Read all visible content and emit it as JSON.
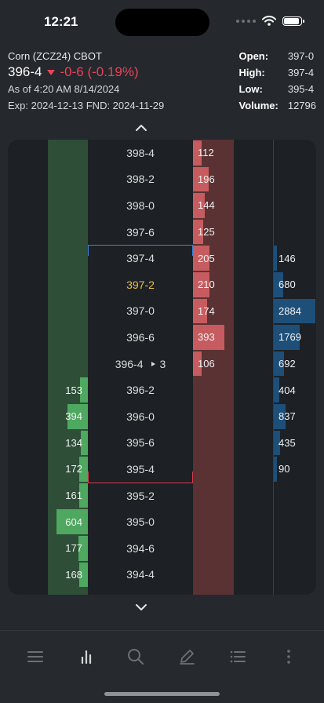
{
  "status_bar": {
    "time": "12:21"
  },
  "header": {
    "instrument": "Corn (ZCZ24) CBOT",
    "last_price": "396-4",
    "change": "-0-6 (-0.19%)",
    "as_of": "As of 4:20 AM 8/14/2024",
    "expiry": "Exp: 2024-12-13 FND: 2024-11-29",
    "stats": [
      {
        "label": "Open:",
        "value": "397-0"
      },
      {
        "label": "High:",
        "value": "397-4"
      },
      {
        "label": "Low:",
        "value": "395-4"
      },
      {
        "label": "Volume:",
        "value": "12796"
      }
    ]
  },
  "ladder": {
    "colors": {
      "bid": "#4ea85f",
      "ask": "#c65c5f",
      "volume": "#1e4f79",
      "highlight_price": "#e8c046",
      "high_marker": "#3b82d6",
      "low_marker": "#d43c4a"
    },
    "last_trade_qty": "3",
    "rows": [
      {
        "price": "398-4",
        "bid": "",
        "ask": "112",
        "volume": ""
      },
      {
        "price": "398-2",
        "bid": "",
        "ask": "196",
        "volume": ""
      },
      {
        "price": "398-0",
        "bid": "",
        "ask": "144",
        "volume": ""
      },
      {
        "price": "397-6",
        "bid": "",
        "ask": "125",
        "volume": ""
      },
      {
        "price": "397-4",
        "bid": "",
        "ask": "205",
        "volume": "146"
      },
      {
        "price": "397-2",
        "bid": "",
        "ask": "210",
        "volume": "680"
      },
      {
        "price": "397-0",
        "bid": "",
        "ask": "174",
        "volume": "2884"
      },
      {
        "price": "396-6",
        "bid": "",
        "ask": "393",
        "volume": "1769"
      },
      {
        "price": "396-4",
        "bid": "",
        "ask": "106",
        "volume": "692"
      },
      {
        "price": "396-2",
        "bid": "153",
        "ask": "",
        "volume": "404"
      },
      {
        "price": "396-0",
        "bid": "394",
        "ask": "",
        "volume": "837"
      },
      {
        "price": "395-6",
        "bid": "134",
        "ask": "",
        "volume": "435"
      },
      {
        "price": "395-4",
        "bid": "172",
        "ask": "",
        "volume": "90"
      },
      {
        "price": "395-2",
        "bid": "161",
        "ask": "",
        "volume": ""
      },
      {
        "price": "395-0",
        "bid": "604",
        "ask": "",
        "volume": ""
      },
      {
        "price": "394-6",
        "bid": "177",
        "ask": "",
        "volume": ""
      },
      {
        "price": "394-4",
        "bid": "168",
        "ask": "",
        "volume": ""
      }
    ]
  },
  "toolbar": {
    "items": [
      {
        "icon": "menu-icon"
      },
      {
        "icon": "chart-icon"
      },
      {
        "icon": "search-icon"
      },
      {
        "icon": "pencil-icon"
      },
      {
        "icon": "list-icon"
      },
      {
        "icon": "more-icon"
      }
    ]
  }
}
